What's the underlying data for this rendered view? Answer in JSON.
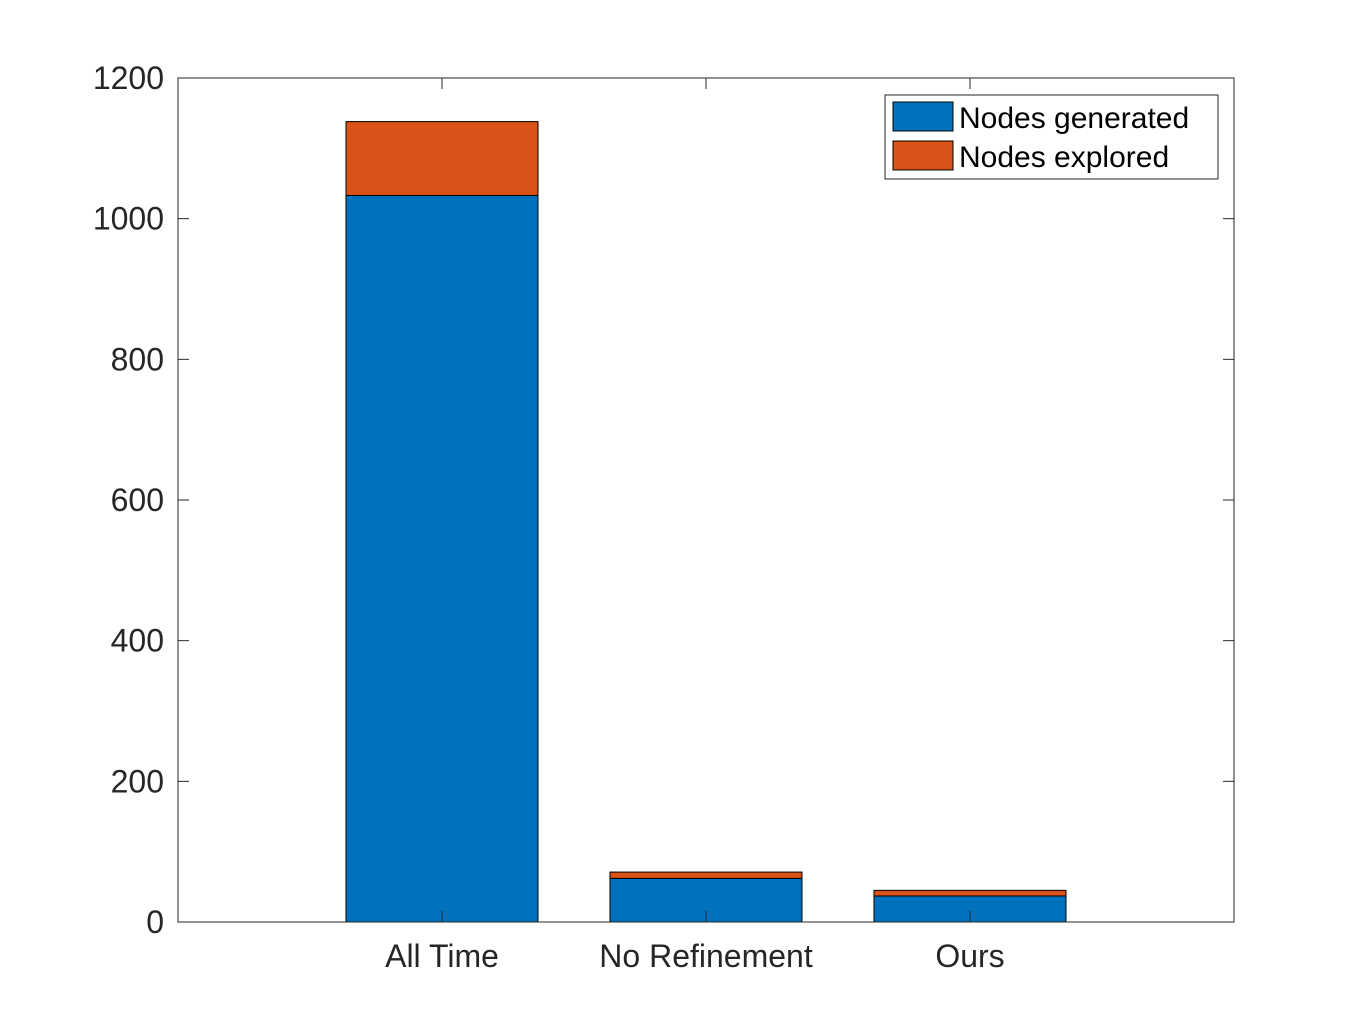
{
  "chart_data": {
    "type": "bar",
    "stacked": true,
    "categories": [
      "All Time",
      "No Refinement",
      "Ours"
    ],
    "series": [
      {
        "name": "Nodes generated",
        "color": "#0072bd",
        "values": [
          1033,
          62,
          37
        ]
      },
      {
        "name": "Nodes explored",
        "color": "#d95319",
        "values": [
          105,
          9,
          8
        ]
      }
    ],
    "title": "",
    "xlabel": "",
    "ylabel": "",
    "ylim": [
      0,
      1200
    ],
    "yticks": [
      "0",
      "200",
      "400",
      "600",
      "800",
      "1000",
      "1200"
    ],
    "xlim": [
      0,
      4
    ],
    "grid": false,
    "legend_position": "top-right"
  }
}
